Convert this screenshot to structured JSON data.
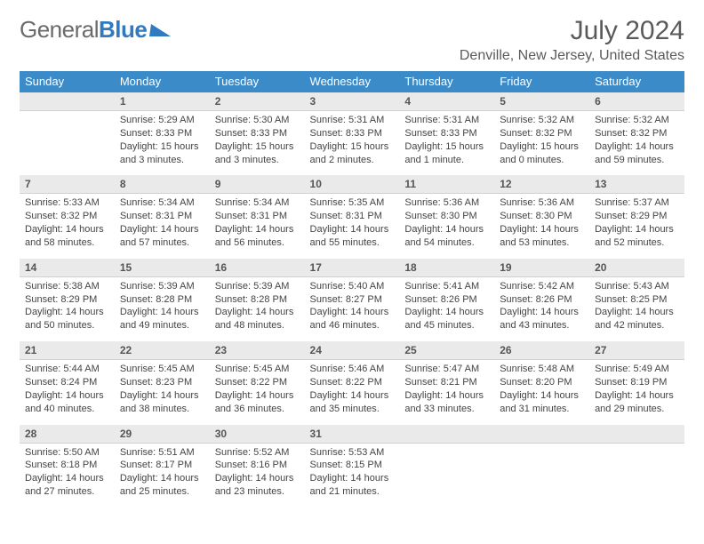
{
  "brand": {
    "part1": "General",
    "part2": "Blue"
  },
  "title": "July 2024",
  "location": "Denville, New Jersey, United States",
  "colors": {
    "header_bg": "#3b8bc9",
    "header_text": "#ffffff",
    "date_bg": "#eaeaea",
    "page_bg": "#ffffff",
    "cell_border": "#4a7fa8",
    "text": "#444444",
    "brand_gray": "#6a6a6a",
    "brand_blue": "#2f7ac0"
  },
  "typography": {
    "title_fontsize": 30,
    "subtitle_fontsize": 16,
    "dayheader_fontsize": 13,
    "date_fontsize": 12,
    "body_fontsize": 11,
    "font_family": "Arial"
  },
  "day_names": [
    "Sunday",
    "Monday",
    "Tuesday",
    "Wednesday",
    "Thursday",
    "Friday",
    "Saturday"
  ],
  "weeks": [
    {
      "dates": [
        "",
        "1",
        "2",
        "3",
        "4",
        "5",
        "6"
      ],
      "info": [
        null,
        {
          "sunrise": "Sunrise: 5:29 AM",
          "sunset": "Sunset: 8:33 PM",
          "daylight": "Daylight: 15 hours and 3 minutes."
        },
        {
          "sunrise": "Sunrise: 5:30 AM",
          "sunset": "Sunset: 8:33 PM",
          "daylight": "Daylight: 15 hours and 3 minutes."
        },
        {
          "sunrise": "Sunrise: 5:31 AM",
          "sunset": "Sunset: 8:33 PM",
          "daylight": "Daylight: 15 hours and 2 minutes."
        },
        {
          "sunrise": "Sunrise: 5:31 AM",
          "sunset": "Sunset: 8:33 PM",
          "daylight": "Daylight: 15 hours and 1 minute."
        },
        {
          "sunrise": "Sunrise: 5:32 AM",
          "sunset": "Sunset: 8:32 PM",
          "daylight": "Daylight: 15 hours and 0 minutes."
        },
        {
          "sunrise": "Sunrise: 5:32 AM",
          "sunset": "Sunset: 8:32 PM",
          "daylight": "Daylight: 14 hours and 59 minutes."
        }
      ]
    },
    {
      "dates": [
        "7",
        "8",
        "9",
        "10",
        "11",
        "12",
        "13"
      ],
      "info": [
        {
          "sunrise": "Sunrise: 5:33 AM",
          "sunset": "Sunset: 8:32 PM",
          "daylight": "Daylight: 14 hours and 58 minutes."
        },
        {
          "sunrise": "Sunrise: 5:34 AM",
          "sunset": "Sunset: 8:31 PM",
          "daylight": "Daylight: 14 hours and 57 minutes."
        },
        {
          "sunrise": "Sunrise: 5:34 AM",
          "sunset": "Sunset: 8:31 PM",
          "daylight": "Daylight: 14 hours and 56 minutes."
        },
        {
          "sunrise": "Sunrise: 5:35 AM",
          "sunset": "Sunset: 8:31 PM",
          "daylight": "Daylight: 14 hours and 55 minutes."
        },
        {
          "sunrise": "Sunrise: 5:36 AM",
          "sunset": "Sunset: 8:30 PM",
          "daylight": "Daylight: 14 hours and 54 minutes."
        },
        {
          "sunrise": "Sunrise: 5:36 AM",
          "sunset": "Sunset: 8:30 PM",
          "daylight": "Daylight: 14 hours and 53 minutes."
        },
        {
          "sunrise": "Sunrise: 5:37 AM",
          "sunset": "Sunset: 8:29 PM",
          "daylight": "Daylight: 14 hours and 52 minutes."
        }
      ]
    },
    {
      "dates": [
        "14",
        "15",
        "16",
        "17",
        "18",
        "19",
        "20"
      ],
      "info": [
        {
          "sunrise": "Sunrise: 5:38 AM",
          "sunset": "Sunset: 8:29 PM",
          "daylight": "Daylight: 14 hours and 50 minutes."
        },
        {
          "sunrise": "Sunrise: 5:39 AM",
          "sunset": "Sunset: 8:28 PM",
          "daylight": "Daylight: 14 hours and 49 minutes."
        },
        {
          "sunrise": "Sunrise: 5:39 AM",
          "sunset": "Sunset: 8:28 PM",
          "daylight": "Daylight: 14 hours and 48 minutes."
        },
        {
          "sunrise": "Sunrise: 5:40 AM",
          "sunset": "Sunset: 8:27 PM",
          "daylight": "Daylight: 14 hours and 46 minutes."
        },
        {
          "sunrise": "Sunrise: 5:41 AM",
          "sunset": "Sunset: 8:26 PM",
          "daylight": "Daylight: 14 hours and 45 minutes."
        },
        {
          "sunrise": "Sunrise: 5:42 AM",
          "sunset": "Sunset: 8:26 PM",
          "daylight": "Daylight: 14 hours and 43 minutes."
        },
        {
          "sunrise": "Sunrise: 5:43 AM",
          "sunset": "Sunset: 8:25 PM",
          "daylight": "Daylight: 14 hours and 42 minutes."
        }
      ]
    },
    {
      "dates": [
        "21",
        "22",
        "23",
        "24",
        "25",
        "26",
        "27"
      ],
      "info": [
        {
          "sunrise": "Sunrise: 5:44 AM",
          "sunset": "Sunset: 8:24 PM",
          "daylight": "Daylight: 14 hours and 40 minutes."
        },
        {
          "sunrise": "Sunrise: 5:45 AM",
          "sunset": "Sunset: 8:23 PM",
          "daylight": "Daylight: 14 hours and 38 minutes."
        },
        {
          "sunrise": "Sunrise: 5:45 AM",
          "sunset": "Sunset: 8:22 PM",
          "daylight": "Daylight: 14 hours and 36 minutes."
        },
        {
          "sunrise": "Sunrise: 5:46 AM",
          "sunset": "Sunset: 8:22 PM",
          "daylight": "Daylight: 14 hours and 35 minutes."
        },
        {
          "sunrise": "Sunrise: 5:47 AM",
          "sunset": "Sunset: 8:21 PM",
          "daylight": "Daylight: 14 hours and 33 minutes."
        },
        {
          "sunrise": "Sunrise: 5:48 AM",
          "sunset": "Sunset: 8:20 PM",
          "daylight": "Daylight: 14 hours and 31 minutes."
        },
        {
          "sunrise": "Sunrise: 5:49 AM",
          "sunset": "Sunset: 8:19 PM",
          "daylight": "Daylight: 14 hours and 29 minutes."
        }
      ]
    },
    {
      "dates": [
        "28",
        "29",
        "30",
        "31",
        "",
        "",
        ""
      ],
      "info": [
        {
          "sunrise": "Sunrise: 5:50 AM",
          "sunset": "Sunset: 8:18 PM",
          "daylight": "Daylight: 14 hours and 27 minutes."
        },
        {
          "sunrise": "Sunrise: 5:51 AM",
          "sunset": "Sunset: 8:17 PM",
          "daylight": "Daylight: 14 hours and 25 minutes."
        },
        {
          "sunrise": "Sunrise: 5:52 AM",
          "sunset": "Sunset: 8:16 PM",
          "daylight": "Daylight: 14 hours and 23 minutes."
        },
        {
          "sunrise": "Sunrise: 5:53 AM",
          "sunset": "Sunset: 8:15 PM",
          "daylight": "Daylight: 14 hours and 21 minutes."
        },
        null,
        null,
        null
      ]
    }
  ]
}
